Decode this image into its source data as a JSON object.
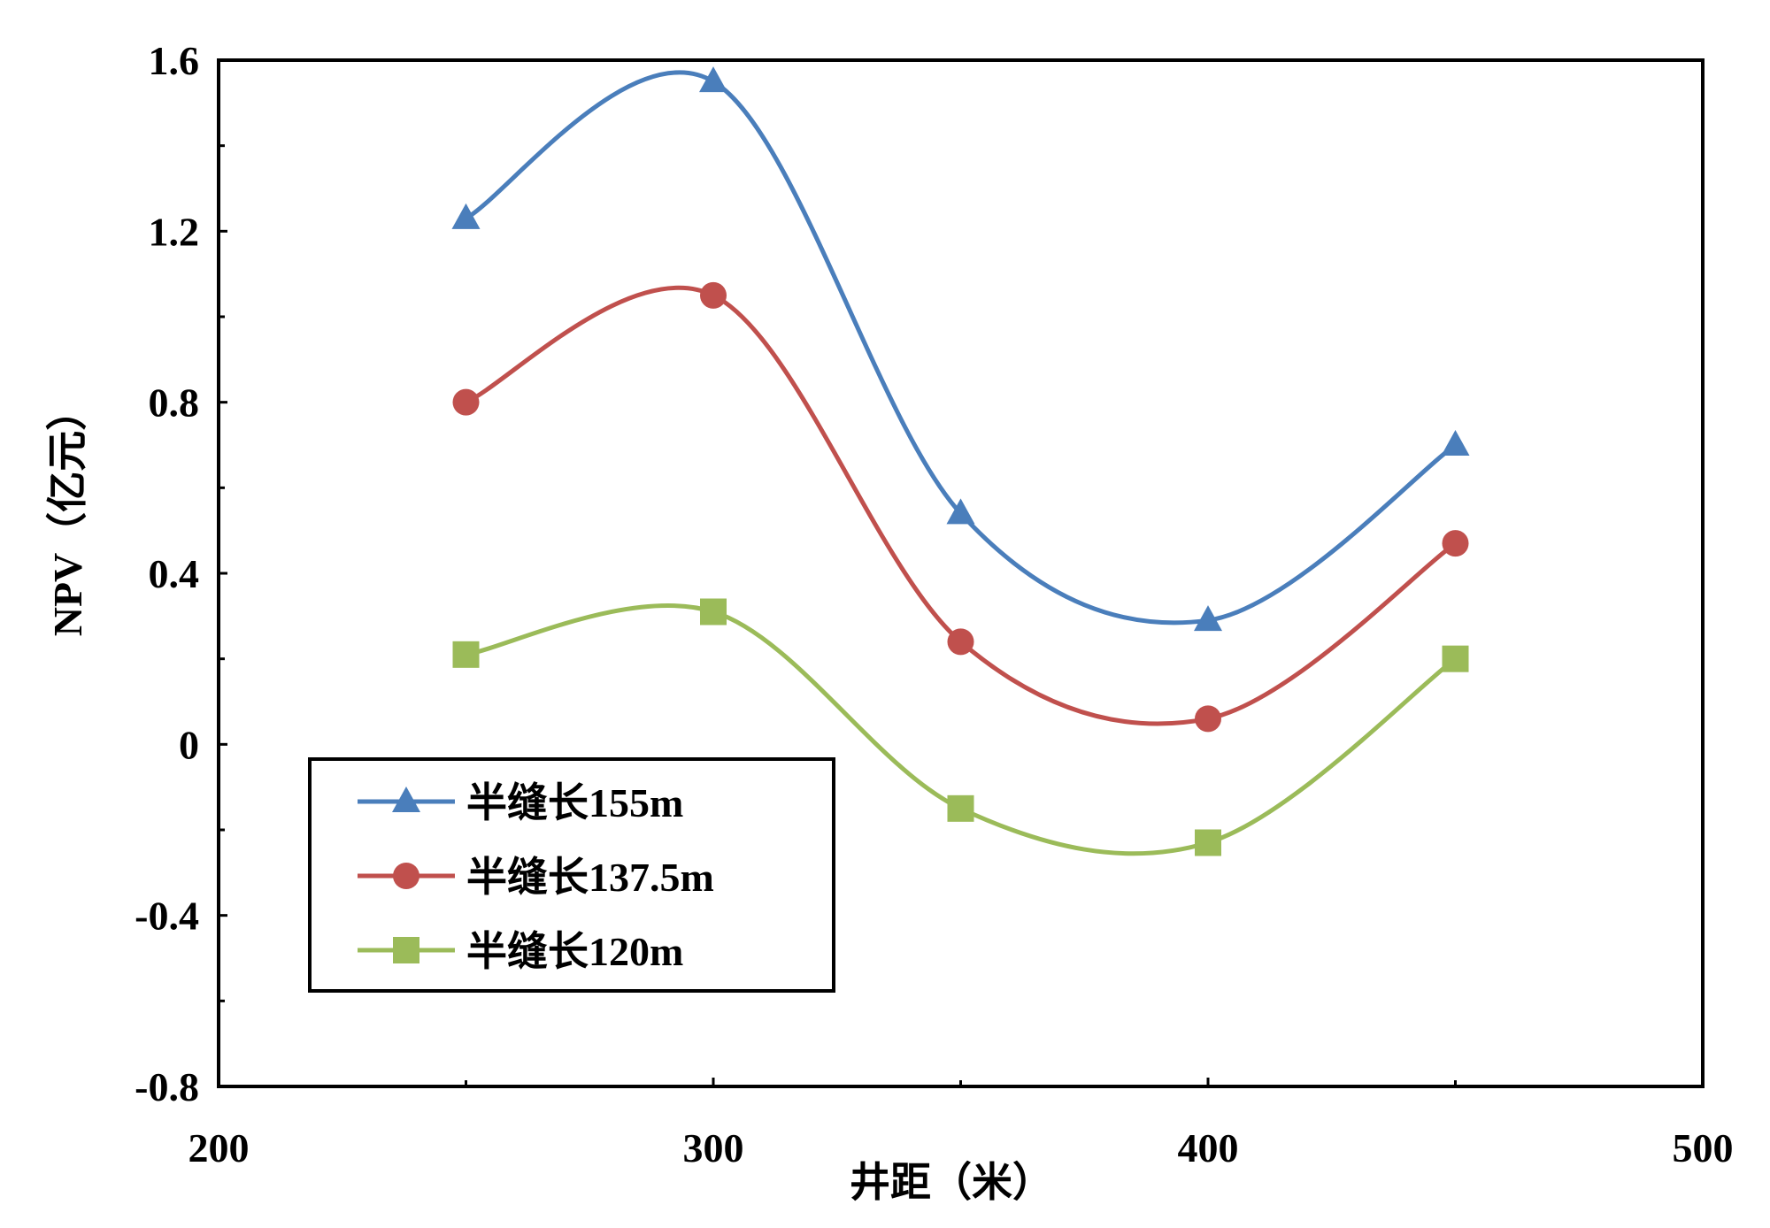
{
  "chart_data": {
    "type": "line",
    "title": "",
    "xlabel": "井距（米）",
    "ylabel": "NPV（亿元）",
    "xlim": [
      200,
      500
    ],
    "ylim": [
      -0.8,
      1.6
    ],
    "x_ticks": [
      200,
      300,
      400,
      500
    ],
    "y_ticks": [
      -0.8,
      -0.4,
      0,
      0.4,
      0.8,
      1.2,
      1.6
    ],
    "x_tick_labels": [
      "200",
      "300",
      "400",
      "500"
    ],
    "y_tick_labels": [
      "-0.8",
      "-0.4",
      "0",
      "0.4",
      "0.8",
      "1.2",
      "1.6"
    ],
    "smooth": true,
    "grid": false,
    "legend_position": "bottom-left",
    "x": [
      250,
      300,
      350,
      400,
      450
    ],
    "series": [
      {
        "name": "半缝长155m",
        "color": "#4a7ebb",
        "marker": "triangle",
        "values": [
          1.23,
          1.55,
          0.54,
          0.29,
          0.7
        ]
      },
      {
        "name": "半缝长137.5m",
        "color": "#c0504d",
        "marker": "circle",
        "values": [
          0.8,
          1.05,
          0.24,
          0.06,
          0.47
        ]
      },
      {
        "name": "半缝长120m",
        "color": "#9bbb59",
        "marker": "square",
        "values": [
          0.21,
          0.31,
          -0.15,
          -0.23,
          0.2
        ]
      }
    ]
  }
}
